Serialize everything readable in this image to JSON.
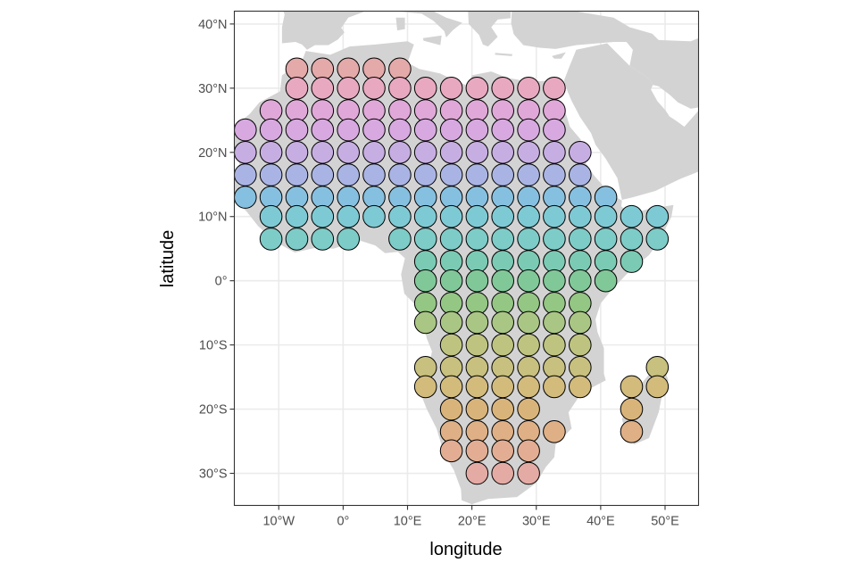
{
  "chart_data": {
    "type": "map",
    "xlabel": "longitude",
    "ylabel": "latitude",
    "xlim": [
      -16.9,
      55.2
    ],
    "ylim": [
      -35.0,
      42.0
    ],
    "x_ticks": [
      {
        "value": -10,
        "label": "10°W"
      },
      {
        "value": 0,
        "label": "0°"
      },
      {
        "value": 10,
        "label": "10°E"
      },
      {
        "value": 20,
        "label": "20°E"
      },
      {
        "value": 30,
        "label": "30°E"
      },
      {
        "value": 40,
        "label": "40°E"
      },
      {
        "value": 50,
        "label": "50°E"
      }
    ],
    "y_ticks": [
      {
        "value": 40,
        "label": "40°N"
      },
      {
        "value": 30,
        "label": "30°N"
      },
      {
        "value": 20,
        "label": "20°N"
      },
      {
        "value": 10,
        "label": "10°N"
      },
      {
        "value": 0,
        "label": "0°"
      },
      {
        "value": -10,
        "label": "10°S"
      },
      {
        "value": -20,
        "label": "20°S"
      },
      {
        "value": -30,
        "label": "30°S"
      }
    ],
    "grid": true,
    "theme": "bw",
    "land_color": "#d3d3d3",
    "cell_diameter_deg": 3.4,
    "grid_origin_lon": -14.87,
    "grid_origin_lat": 33.0,
    "grid_step_deg": 4.0,
    "row_lats": [
      33.0,
      30.0,
      26.5,
      23.5,
      20.0,
      16.5,
      13.0,
      10.0,
      6.5,
      3.0,
      0.0,
      -3.5,
      -6.5,
      -10.0,
      -13.5,
      -16.5,
      -20.0,
      -23.5,
      -26.5,
      -30.0
    ],
    "row_colors": [
      "#e4a9a9",
      "#e8a9c0",
      "#e0a8d8",
      "#d7a9e0",
      "#c7aee2",
      "#aab4e4",
      "#86c0e0",
      "#7ecad4",
      "#7dccc8",
      "#7bcab4",
      "#80c898",
      "#94c684",
      "#a9c684",
      "#bec47f",
      "#c7c07e",
      "#d2bb7b",
      "#d9b47a",
      "#dfb086",
      "#e2ad93",
      "#e4aaa4"
    ],
    "rows": [
      {
        "lat": 33.0,
        "lons": [
          -7.2,
          -3.2,
          0.8,
          4.8,
          8.8
        ]
      },
      {
        "lat": 30.0,
        "lons": [
          -7.2,
          -3.2,
          0.8,
          4.8,
          8.8,
          12.8,
          16.8,
          20.8,
          24.8,
          28.8,
          32.8
        ]
      },
      {
        "lat": 26.5,
        "lons": [
          -11.2,
          -7.2,
          -3.2,
          0.8,
          4.8,
          8.8,
          12.8,
          16.8,
          20.8,
          24.8,
          28.8,
          32.8
        ]
      },
      {
        "lat": 23.5,
        "lons": [
          -15.2,
          -11.2,
          -7.2,
          -3.2,
          0.8,
          4.8,
          8.8,
          12.8,
          16.8,
          20.8,
          24.8,
          28.8,
          32.8
        ]
      },
      {
        "lat": 20.0,
        "lons": [
          -15.2,
          -11.2,
          -7.2,
          -3.2,
          0.8,
          4.8,
          8.8,
          12.8,
          16.8,
          20.8,
          24.8,
          28.8,
          32.8,
          36.8
        ]
      },
      {
        "lat": 16.5,
        "lons": [
          -15.2,
          -11.2,
          -7.2,
          -3.2,
          0.8,
          4.8,
          8.8,
          12.8,
          16.8,
          20.8,
          24.8,
          28.8,
          32.8,
          36.8
        ]
      },
      {
        "lat": 13.0,
        "lons": [
          -15.2,
          -11.2,
          -7.2,
          -3.2,
          0.8,
          4.8,
          8.8,
          12.8,
          16.8,
          20.8,
          24.8,
          28.8,
          32.8,
          36.8,
          40.8
        ]
      },
      {
        "lat": 10.0,
        "lons": [
          -11.2,
          -7.2,
          -3.2,
          0.8,
          4.8,
          8.8,
          12.8,
          16.8,
          20.8,
          24.8,
          28.8,
          32.8,
          36.8,
          40.8,
          44.8,
          48.8
        ]
      },
      {
        "lat": 6.5,
        "lons": [
          -11.2,
          -7.2,
          -3.2,
          0.8,
          8.8,
          12.8,
          16.8,
          20.8,
          24.8,
          28.8,
          32.8,
          36.8,
          40.8,
          44.8,
          48.8
        ]
      },
      {
        "lat": 3.0,
        "lons": [
          12.8,
          16.8,
          20.8,
          24.8,
          28.8,
          32.8,
          36.8,
          40.8,
          44.8
        ]
      },
      {
        "lat": 0.0,
        "lons": [
          12.8,
          16.8,
          20.8,
          24.8,
          28.8,
          32.8,
          36.8,
          40.8
        ]
      },
      {
        "lat": -3.5,
        "lons": [
          12.8,
          16.8,
          20.8,
          24.8,
          28.8,
          32.8,
          36.8
        ]
      },
      {
        "lat": -6.5,
        "lons": [
          12.8,
          16.8,
          20.8,
          24.8,
          28.8,
          32.8,
          36.8
        ]
      },
      {
        "lat": -10.0,
        "lons": [
          16.8,
          20.8,
          24.8,
          28.8,
          32.8,
          36.8
        ]
      },
      {
        "lat": -13.5,
        "lons": [
          12.8,
          16.8,
          20.8,
          24.8,
          28.8,
          32.8,
          36.8,
          48.8
        ]
      },
      {
        "lat": -16.5,
        "lons": [
          12.8,
          16.8,
          20.8,
          24.8,
          28.8,
          32.8,
          36.8,
          44.8,
          48.8
        ]
      },
      {
        "lat": -20.0,
        "lons": [
          16.8,
          20.8,
          24.8,
          28.8,
          44.8
        ]
      },
      {
        "lat": -23.5,
        "lons": [
          16.8,
          20.8,
          24.8,
          28.8,
          32.8,
          44.8
        ]
      },
      {
        "lat": -26.5,
        "lons": [
          16.8,
          20.8,
          24.8,
          28.8
        ]
      },
      {
        "lat": -30.0,
        "lons": [
          20.8,
          24.8,
          28.8
        ]
      }
    ],
    "land": {
      "africa": [
        [
          -17.0,
          21.0
        ],
        [
          -16.9,
          24.0
        ],
        [
          -14.5,
          26.0
        ],
        [
          -13.0,
          27.8
        ],
        [
          -9.8,
          29.5
        ],
        [
          -9.5,
          32.0
        ],
        [
          -6.5,
          34.0
        ],
        [
          -5.8,
          35.8
        ],
        [
          -2.0,
          35.2
        ],
        [
          1.0,
          36.5
        ],
        [
          5.0,
          36.8
        ],
        [
          10.0,
          37.3
        ],
        [
          11.0,
          36.8
        ],
        [
          10.0,
          34.0
        ],
        [
          11.8,
          33.0
        ],
        [
          15.0,
          32.3
        ],
        [
          19.5,
          30.3
        ],
        [
          20.0,
          32.0
        ],
        [
          23.0,
          32.6
        ],
        [
          25.5,
          31.6
        ],
        [
          29.0,
          31.0
        ],
        [
          32.3,
          31.2
        ],
        [
          32.6,
          29.9
        ],
        [
          33.4,
          28.2
        ],
        [
          34.2,
          27.4
        ],
        [
          35.2,
          24.0
        ],
        [
          36.9,
          22.0
        ],
        [
          37.4,
          18.8
        ],
        [
          38.9,
          16.5
        ],
        [
          41.5,
          13.5
        ],
        [
          43.3,
          12.5
        ],
        [
          43.2,
          11.6
        ],
        [
          44.5,
          10.4
        ],
        [
          47.5,
          11.2
        ],
        [
          51.3,
          11.8
        ],
        [
          51.0,
          10.0
        ],
        [
          49.0,
          6.0
        ],
        [
          47.5,
          4.0
        ],
        [
          44.0,
          1.0
        ],
        [
          41.5,
          -1.7
        ],
        [
          40.0,
          -3.5
        ],
        [
          39.2,
          -6.0
        ],
        [
          39.5,
          -8.0
        ],
        [
          40.5,
          -10.5
        ],
        [
          40.5,
          -14.5
        ],
        [
          40.8,
          -15.5
        ],
        [
          37.0,
          -17.5
        ],
        [
          35.0,
          -20.5
        ],
        [
          35.5,
          -23.0
        ],
        [
          33.0,
          -25.5
        ],
        [
          32.8,
          -27.5
        ],
        [
          31.5,
          -29.0
        ],
        [
          30.0,
          -31.5
        ],
        [
          27.0,
          -33.7
        ],
        [
          22.5,
          -34.0
        ],
        [
          20.0,
          -34.8
        ],
        [
          18.4,
          -34.2
        ],
        [
          18.3,
          -32.5
        ],
        [
          17.2,
          -29.5
        ],
        [
          15.7,
          -27.0
        ],
        [
          14.5,
          -23.0
        ],
        [
          13.0,
          -20.0
        ],
        [
          11.8,
          -17.0
        ],
        [
          12.2,
          -14.0
        ],
        [
          13.5,
          -12.5
        ],
        [
          13.8,
          -11.0
        ],
        [
          13.0,
          -9.0
        ],
        [
          12.3,
          -6.0
        ],
        [
          11.5,
          -4.0
        ],
        [
          9.5,
          -2.0
        ],
        [
          9.0,
          1.0
        ],
        [
          9.6,
          3.5
        ],
        [
          8.5,
          4.5
        ],
        [
          6.5,
          4.3
        ],
        [
          5.0,
          5.5
        ],
        [
          2.5,
          6.3
        ],
        [
          -1.5,
          5.0
        ],
        [
          -4.0,
          5.2
        ],
        [
          -7.5,
          4.4
        ],
        [
          -9.5,
          5.5
        ],
        [
          -11.5,
          7.0
        ],
        [
          -13.2,
          8.5
        ],
        [
          -15.0,
          10.8
        ],
        [
          -16.8,
          12.5
        ],
        [
          -17.5,
          14.7
        ],
        [
          -16.4,
          16.5
        ],
        [
          -16.0,
          19.0
        ]
      ],
      "madagascar": [
        [
          49.3,
          -12.0
        ],
        [
          50.5,
          -15.5
        ],
        [
          49.7,
          -17.0
        ],
        [
          49.0,
          -20.5
        ],
        [
          47.5,
          -24.5
        ],
        [
          45.2,
          -25.5
        ],
        [
          43.8,
          -23.5
        ],
        [
          43.3,
          -21.5
        ],
        [
          44.3,
          -19.5
        ],
        [
          44.0,
          -17.0
        ],
        [
          46.5,
          -15.8
        ],
        [
          48.0,
          -14.0
        ]
      ],
      "arabia": [
        [
          34.9,
          29.4
        ],
        [
          35.5,
          28.0
        ],
        [
          36.8,
          25.5
        ],
        [
          38.5,
          23.0
        ],
        [
          39.2,
          21.2
        ],
        [
          40.8,
          19.0
        ],
        [
          42.6,
          16.0
        ],
        [
          43.3,
          12.6
        ],
        [
          45.0,
          13.0
        ],
        [
          48.5,
          14.0
        ],
        [
          52.2,
          15.8
        ],
        [
          55.2,
          17.0
        ],
        [
          55.2,
          26.5
        ],
        [
          53.0,
          24.0
        ],
        [
          51.6,
          25.0
        ],
        [
          50.7,
          25.6
        ],
        [
          50.1,
          26.5
        ],
        [
          48.8,
          28.0
        ],
        [
          47.8,
          29.8
        ],
        [
          48.1,
          30.5
        ],
        [
          47.5,
          31.5
        ],
        [
          44.5,
          33.5
        ],
        [
          42.0,
          36.0
        ],
        [
          41.0,
          37.0
        ],
        [
          36.2,
          36.0
        ],
        [
          35.0,
          33.0
        ],
        [
          34.3,
          31.2
        ]
      ],
      "iberia": [
        [
          -9.5,
          37.0
        ],
        [
          -9.5,
          39.5
        ],
        [
          -9.1,
          41.5
        ],
        [
          -9.3,
          42.0
        ],
        [
          -7.0,
          42.0
        ],
        [
          -7.0,
          42.0
        ],
        [
          3.2,
          42.0
        ],
        [
          3.2,
          41.9
        ],
        [
          0.8,
          41.0
        ],
        [
          -0.3,
          39.4
        ],
        [
          0.2,
          38.7
        ],
        [
          -0.8,
          37.6
        ],
        [
          -2.3,
          36.7
        ],
        [
          -4.4,
          36.7
        ],
        [
          -5.6,
          36.0
        ],
        [
          -6.4,
          36.8
        ],
        [
          -7.4,
          37.2
        ]
      ],
      "italy": [
        [
          8.0,
          42.0
        ],
        [
          11.5,
          42.0
        ],
        [
          14.0,
          42.0
        ],
        [
          16.0,
          41.0
        ],
        [
          18.5,
          40.2
        ],
        [
          17.0,
          39.0
        ],
        [
          16.0,
          37.9
        ],
        [
          15.7,
          38.9
        ],
        [
          14.0,
          40.5
        ],
        [
          12.2,
          41.6
        ]
      ],
      "sicily": [
        [
          12.4,
          37.8
        ],
        [
          15.3,
          38.2
        ],
        [
          15.1,
          36.7
        ],
        [
          12.5,
          37.4
        ]
      ],
      "sardinia": [
        [
          8.2,
          41.0
        ],
        [
          9.6,
          41.0
        ],
        [
          9.6,
          39.2
        ],
        [
          8.4,
          39.0
        ]
      ],
      "greece": [
        [
          19.4,
          42.0
        ],
        [
          26.0,
          42.0
        ],
        [
          26.0,
          40.9
        ],
        [
          24.0,
          40.7
        ],
        [
          23.0,
          39.5
        ],
        [
          24.0,
          38.0
        ],
        [
          22.5,
          36.5
        ],
        [
          21.7,
          36.8
        ],
        [
          21.1,
          38.3
        ],
        [
          19.5,
          40.0
        ]
      ],
      "crete": [
        [
          23.6,
          35.5
        ],
        [
          26.3,
          35.3
        ],
        [
          26.2,
          35.0
        ],
        [
          23.6,
          35.2
        ]
      ],
      "turkey": [
        [
          26.2,
          42.0
        ],
        [
          36.0,
          42.0
        ],
        [
          42.0,
          41.0
        ],
        [
          44.5,
          39.5
        ],
        [
          44.5,
          37.2
        ],
        [
          42.0,
          37.2
        ],
        [
          36.2,
          36.7
        ],
        [
          33.0,
          36.1
        ],
        [
          30.5,
          36.3
        ],
        [
          28.0,
          36.7
        ],
        [
          26.5,
          38.4
        ],
        [
          26.1,
          40.1
        ]
      ],
      "cyprus": [
        [
          32.4,
          35.0
        ],
        [
          34.6,
          35.6
        ],
        [
          33.9,
          34.6
        ],
        [
          32.8,
          34.6
        ]
      ],
      "iran": [
        [
          44.5,
          39.5
        ],
        [
          48.0,
          38.5
        ],
        [
          49.0,
          37.5
        ],
        [
          54.0,
          37.3
        ],
        [
          55.2,
          37.8
        ],
        [
          55.2,
          27.0
        ],
        [
          54.0,
          26.8
        ],
        [
          52.0,
          27.8
        ],
        [
          50.8,
          28.9
        ],
        [
          49.0,
          30.3
        ],
        [
          48.1,
          30.5
        ],
        [
          47.5,
          31.5
        ],
        [
          44.5,
          33.5
        ],
        [
          45.0,
          36.0
        ],
        [
          44.0,
          37.2
        ]
      ]
    }
  }
}
